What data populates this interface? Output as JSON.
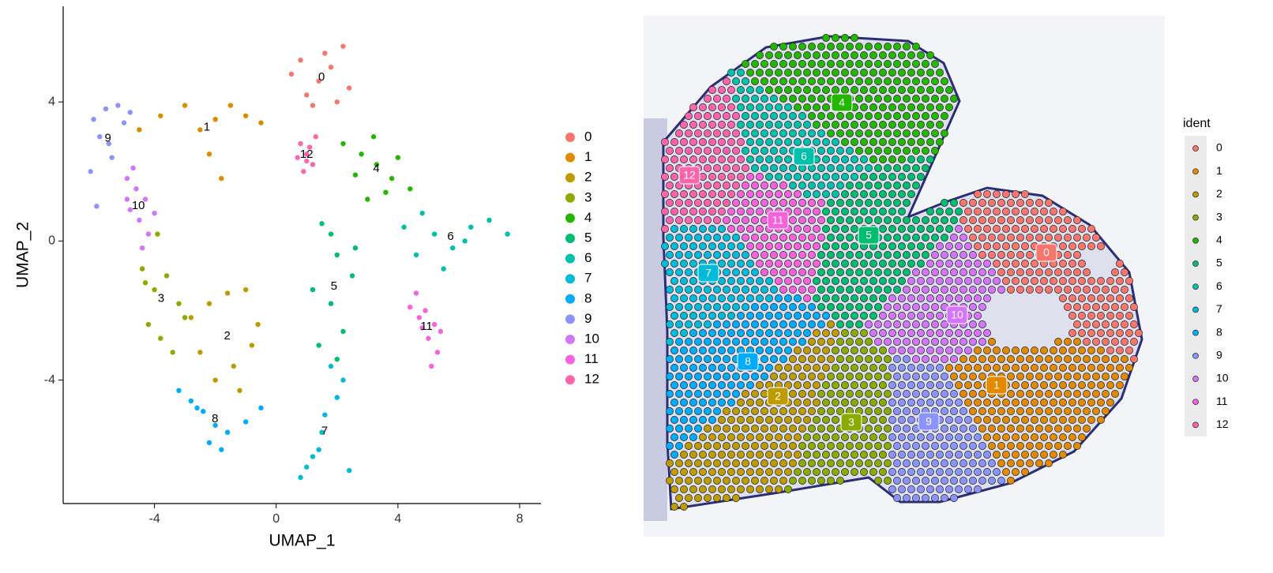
{
  "chart_data": [
    {
      "type": "scatter",
      "x_label": "UMAP_1",
      "y_label": "UMAP_2",
      "xlim": [
        -7,
        8.7
      ],
      "ylim": [
        -7.55,
        6.75
      ],
      "xticks": [
        -4,
        0,
        4,
        8
      ],
      "yticks": [
        -4,
        0,
        4
      ],
      "series": [
        {
          "name": "0",
          "color": "#F8766D",
          "x": [
            0.5,
            1.0,
            1.4,
            1.8,
            2.2,
            2.4,
            0.8,
            1.2,
            2.0,
            1.6
          ],
          "y": [
            4.8,
            4.2,
            4.6,
            5.0,
            5.6,
            4.4,
            5.2,
            3.9,
            4.0,
            5.4
          ]
        },
        {
          "name": "1",
          "color": "#E18A00",
          "x": [
            -4.5,
            -3.8,
            -3.0,
            -2.5,
            -2.0,
            -1.5,
            -1.0,
            -0.5,
            -2.2,
            -1.8
          ],
          "y": [
            3.2,
            3.6,
            3.9,
            3.2,
            3.5,
            3.9,
            3.6,
            3.4,
            2.5,
            1.8
          ]
        },
        {
          "name": "2",
          "color": "#BE9C00",
          "x": [
            -2.8,
            -2.2,
            -1.6,
            -1.0,
            -0.6,
            -2.5,
            -1.4,
            -0.8,
            -2.0,
            -1.2
          ],
          "y": [
            -2.2,
            -1.8,
            -1.5,
            -1.4,
            -2.4,
            -3.2,
            -3.6,
            -3.0,
            -4.0,
            -4.3
          ]
        },
        {
          "name": "3",
          "color": "#8CAB00",
          "x": [
            -4.4,
            -4.0,
            -3.6,
            -3.2,
            -4.2,
            -3.8,
            -3.4,
            -4.3,
            -3.0,
            -3.9
          ],
          "y": [
            -0.8,
            -1.4,
            -1.0,
            -1.8,
            -2.4,
            -2.8,
            -3.2,
            -1.2,
            -2.2,
            0.2
          ]
        },
        {
          "name": "4",
          "color": "#24B700",
          "x": [
            2.2,
            2.8,
            3.3,
            3.8,
            4.4,
            2.6,
            3.0,
            3.6,
            4.0,
            3.2
          ],
          "y": [
            2.8,
            2.5,
            2.2,
            1.8,
            1.5,
            1.9,
            1.2,
            1.4,
            2.4,
            3.0
          ]
        },
        {
          "name": "5",
          "color": "#00BE70",
          "x": [
            1.5,
            2.0,
            2.5,
            1.8,
            2.2,
            1.4,
            2.6,
            1.2,
            2.0,
            1.8
          ],
          "y": [
            0.5,
            -0.4,
            -1.0,
            -1.8,
            -2.6,
            -3.0,
            -0.2,
            -1.4,
            -3.4,
            0.2
          ]
        },
        {
          "name": "6",
          "color": "#00C1AB",
          "x": [
            4.2,
            4.8,
            5.2,
            5.8,
            6.4,
            7.0,
            7.6,
            4.6,
            5.5,
            6.2
          ],
          "y": [
            0.4,
            0.8,
            0.2,
            -0.2,
            0.4,
            0.6,
            0.2,
            -0.4,
            -0.8,
            0.0
          ]
        },
        {
          "name": "7",
          "color": "#00BBDA",
          "x": [
            1.2,
            1.5,
            2.0,
            1.0,
            1.8,
            0.8,
            2.4,
            1.6,
            2.2,
            1.4
          ],
          "y": [
            -6.2,
            -5.5,
            -4.5,
            -6.5,
            -3.6,
            -6.8,
            -6.6,
            -5.0,
            -4.0,
            -6.0
          ]
        },
        {
          "name": "8",
          "color": "#00ACFC",
          "x": [
            -3.2,
            -2.8,
            -2.4,
            -2.0,
            -1.6,
            -1.0,
            -0.5,
            -2.2,
            -1.8,
            -2.6
          ],
          "y": [
            -4.3,
            -4.6,
            -4.9,
            -5.3,
            -5.5,
            -5.2,
            -4.8,
            -5.8,
            -6.0,
            -4.8
          ]
        },
        {
          "name": "9",
          "color": "#8B93FF",
          "x": [
            -6.0,
            -5.6,
            -5.2,
            -4.8,
            -5.8,
            -5.4,
            -6.1,
            -5.0,
            -5.5,
            -5.9
          ],
          "y": [
            3.5,
            3.8,
            3.9,
            3.7,
            3.0,
            2.4,
            2.0,
            3.4,
            2.8,
            1.0
          ]
        },
        {
          "name": "10",
          "color": "#D575FE",
          "x": [
            -4.9,
            -4.6,
            -4.3,
            -4.8,
            -4.5,
            -4.2,
            -4.7,
            -4.4,
            -4.9,
            -4.0
          ],
          "y": [
            1.8,
            1.5,
            1.2,
            0.9,
            0.6,
            0.2,
            2.1,
            -0.2,
            1.2,
            0.8
          ]
        },
        {
          "name": "11",
          "color": "#F962DD",
          "x": [
            4.6,
            4.9,
            5.2,
            5.0,
            4.7,
            5.3,
            5.1,
            4.4,
            5.4,
            4.8
          ],
          "y": [
            -1.5,
            -2.0,
            -2.4,
            -2.8,
            -2.2,
            -3.2,
            -3.6,
            -1.9,
            -2.6,
            -2.5
          ]
        },
        {
          "name": "12",
          "color": "#FF65AC",
          "x": [
            0.8,
            1.0,
            1.2,
            0.9,
            1.1,
            1.3,
            0.7,
            1.0
          ],
          "y": [
            2.8,
            2.5,
            2.2,
            2.0,
            2.7,
            3.0,
            2.4,
            2.3
          ]
        }
      ]
    },
    {
      "type": "spatial",
      "legend_title": "ident",
      "series": [
        {
          "name": "0",
          "color": "#F8766D"
        },
        {
          "name": "1",
          "color": "#E18A00"
        },
        {
          "name": "2",
          "color": "#BE9C00"
        },
        {
          "name": "3",
          "color": "#8CAB00"
        },
        {
          "name": "4",
          "color": "#24B700"
        },
        {
          "name": "5",
          "color": "#00BE70"
        },
        {
          "name": "6",
          "color": "#00C1AB"
        },
        {
          "name": "7",
          "color": "#00BBDA"
        },
        {
          "name": "8",
          "color": "#00ACFC"
        },
        {
          "name": "9",
          "color": "#8B93FF"
        },
        {
          "name": "10",
          "color": "#D575FE"
        },
        {
          "name": "11",
          "color": "#F962DD"
        },
        {
          "name": "12",
          "color": "#FF65AC"
        }
      ]
    }
  ]
}
